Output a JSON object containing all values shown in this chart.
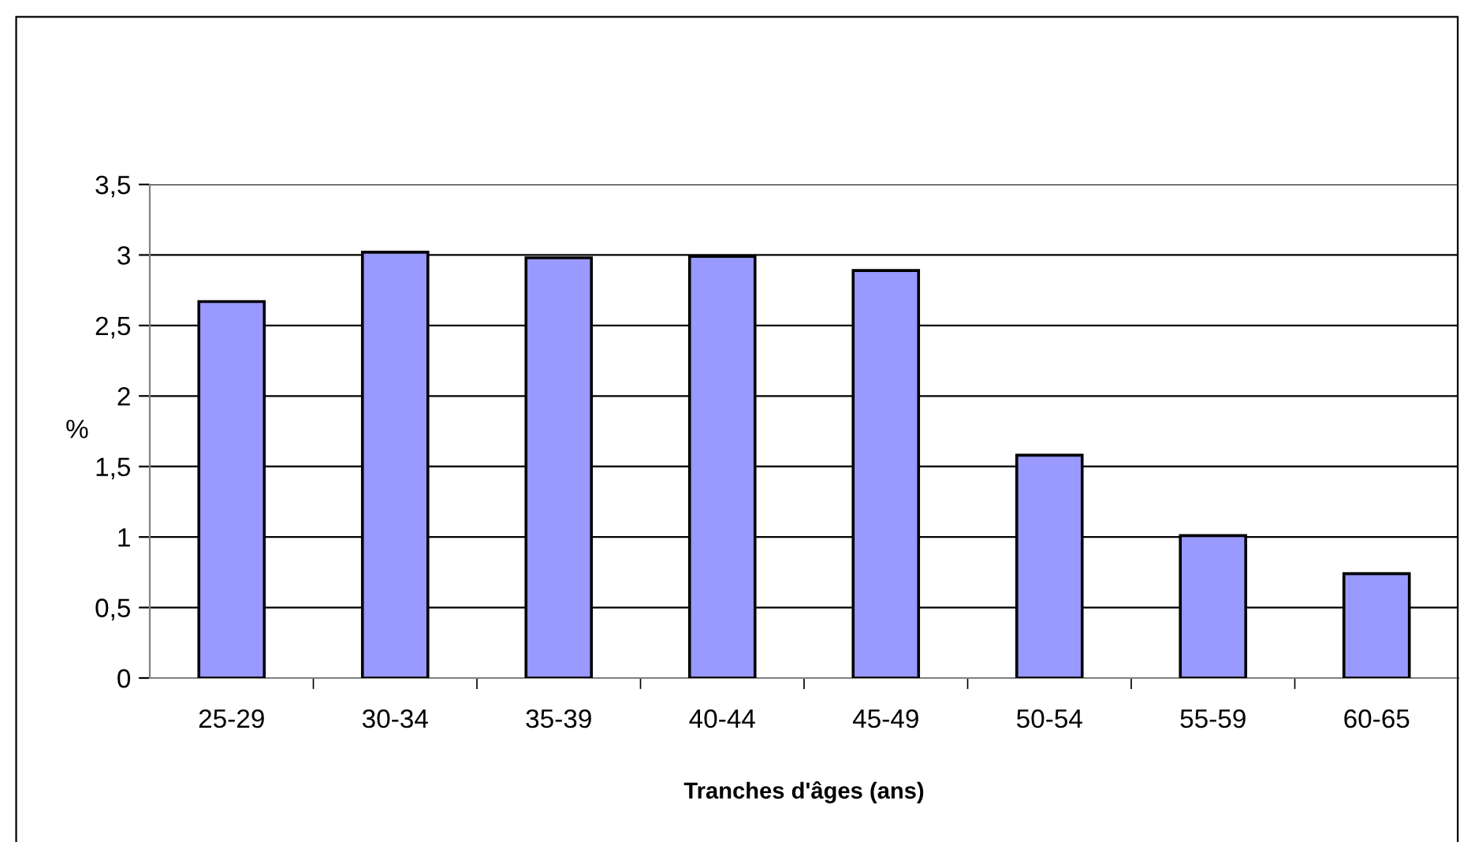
{
  "chart_data": {
    "type": "bar",
    "xlabel": "Tranches d'âges (ans)",
    "ylabel": "%",
    "categories": [
      "25-29",
      "30-34",
      "35-39",
      "40-44",
      "45-49",
      "50-54",
      "55-59",
      "60-65"
    ],
    "values": [
      2.67,
      3.02,
      2.98,
      2.99,
      2.89,
      1.58,
      1.01,
      0.74
    ],
    "color": "#9999ff",
    "ylim": [
      0,
      3.5
    ],
    "yticks": [
      0,
      {
        "value": 0.5,
        "label": "0,5"
      },
      1,
      {
        "value": 1.5,
        "label": "1,5"
      },
      2,
      {
        "value": 2.5,
        "label": "2,5"
      },
      3,
      {
        "value": 3.5,
        "label": "3,5"
      }
    ],
    "grid": "y",
    "legend": false
  }
}
